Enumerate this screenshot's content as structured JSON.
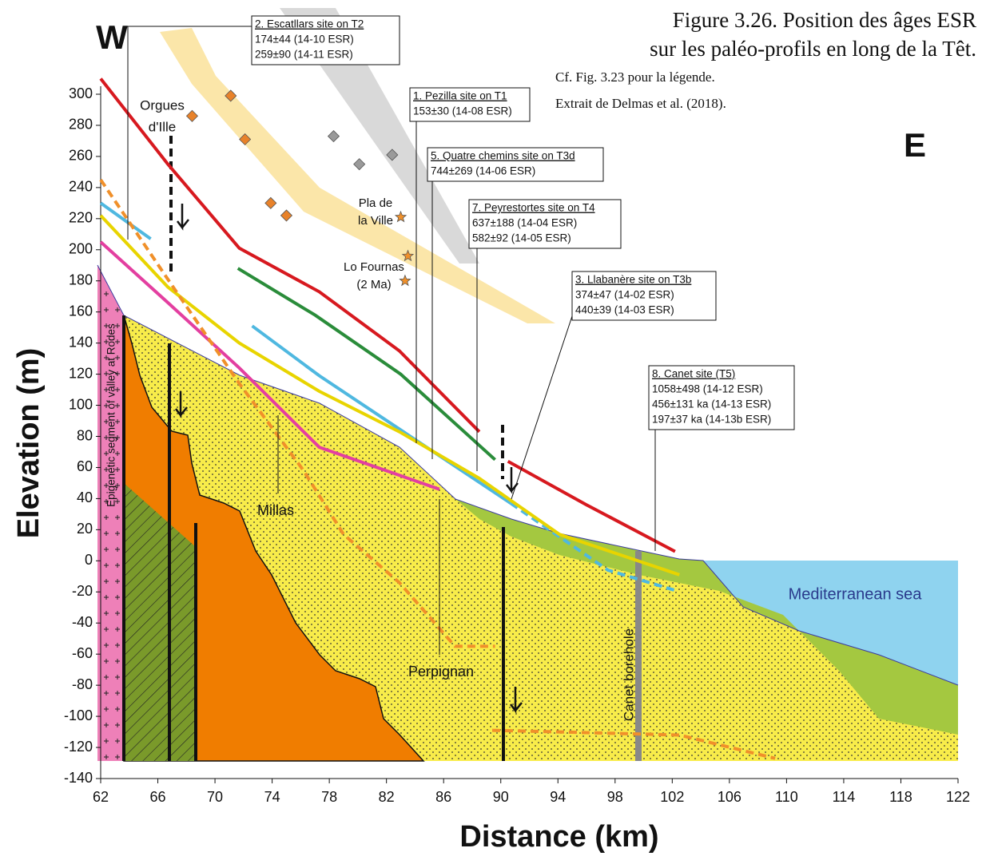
{
  "chart_data": {
    "type": "line",
    "title_lines": [
      "Figure 3.26. Position des âges ESR",
      "sur les paléo-profils en long de la Têt."
    ],
    "subtitle_lines": [
      "Cf. Fig. 3.23 pour la légende.",
      "Extrait de Delmas et al. (2018)."
    ],
    "xlabel": "Distance (km)",
    "ylabel": "Elevation (m)",
    "xlim": [
      62,
      122
    ],
    "xticks": [
      62,
      66,
      70,
      74,
      78,
      82,
      86,
      90,
      94,
      98,
      102,
      106,
      110,
      114,
      118,
      122
    ],
    "ylim": [
      -140,
      300
    ],
    "yticks": [
      -140,
      -120,
      -100,
      -80,
      -60,
      -40,
      -20,
      0,
      20,
      40,
      60,
      80,
      100,
      120,
      140,
      160,
      180,
      200,
      220,
      240,
      260,
      280,
      300
    ],
    "series": [
      {
        "color": "#d7191f",
        "dash": false,
        "x": [
          62,
          66.7,
          71.7,
          77.3,
          82.9,
          88.5,
          null,
          90.5,
          96,
          102.2
        ],
        "values": [
          310,
          255,
          201,
          173,
          135,
          83,
          null,
          64,
          36,
          6
        ]
      },
      {
        "color": "#2a8c3a",
        "dash": false,
        "x": [
          71.6,
          77,
          83,
          89.6
        ],
        "values": [
          188,
          158,
          120,
          65
        ]
      },
      {
        "color": "#4fb8e0",
        "dash": false,
        "x": [
          62,
          65.5,
          null,
          72.6,
          77.3,
          84,
          90.7
        ],
        "values": [
          230,
          207,
          null,
          151,
          119,
          78,
          37
        ]
      },
      {
        "color": "#4fb8e0",
        "dash": true,
        "x": [
          90.7,
          97.5,
          102.2
        ],
        "values": [
          37,
          -6,
          -19
        ]
      },
      {
        "color": "#e8d400",
        "dash": false,
        "x": [
          62,
          66.7,
          71.7,
          77.3,
          82.9,
          88.5,
          94.1,
          102.5
        ],
        "values": [
          222,
          176,
          140,
          109,
          83,
          53,
          17,
          -9
        ]
      },
      {
        "color": "#e33fa0",
        "dash": false,
        "x": [
          62,
          66.7,
          71.7,
          77.3,
          85.7
        ],
        "values": [
          205,
          166,
          124,
          73,
          46
        ]
      },
      {
        "color": "#f0902a",
        "dash": true,
        "x": [
          62,
          66.7,
          71.7,
          76.2,
          79,
          82.9,
          86.8,
          89.6
        ],
        "values": [
          245,
          181,
          114,
          58,
          17,
          -14,
          -55,
          -55
        ]
      },
      {
        "color": "#f0902a",
        "dash": true,
        "x": [
          89.4,
          94.1,
          102.5,
          109.2
        ],
        "values": [
          -109,
          -110,
          -112,
          -127
        ]
      }
    ],
    "points": [
      {
        "marker": "diamond",
        "color": "#e8822a",
        "x": [
          68.4,
          71.1,
          72.1,
          73.9,
          75
        ],
        "values": [
          286,
          299,
          271,
          230,
          222
        ]
      },
      {
        "marker": "diamond",
        "color": "#9a9a9a",
        "x": [
          78.3,
          80.1,
          82.4
        ],
        "values": [
          273,
          255,
          261
        ]
      },
      {
        "marker": "star",
        "color": "#f0902a",
        "x": [
          83,
          83.5,
          83.3
        ],
        "values": [
          221,
          196,
          180
        ]
      }
    ],
    "annotations": [
      {
        "lines": [
          "2. Escatllars site on T2",
          "174±44 (14-10 ESR)",
          "259±90 (14-11 ESR)"
        ]
      },
      {
        "lines": [
          "1. Pezilla site on T1",
          "153±30 (14-08 ESR)"
        ]
      },
      {
        "lines": [
          "5. Quatre chemins site on T3d",
          "744±269 (14-06 ESR)"
        ]
      },
      {
        "lines": [
          "7. Peyrestortes site on T4",
          "637±188 (14-04 ESR)",
          "582±92 (14-05 ESR)"
        ]
      },
      {
        "lines": [
          "3. Llabanère site on T3b",
          "374±47 (14-02 ESR)",
          "440±39 (14-03 ESR)"
        ]
      },
      {
        "lines": [
          "8. Canet site (T5)",
          "1058±498 (14-12 ESR)",
          "456±131 ka (14-13 ESR)",
          "197±37 ka (14-13b ESR)"
        ]
      }
    ],
    "labels": [
      "W",
      "E",
      "Orgues",
      "d'Ille",
      "Pla de",
      "la Ville",
      "Lo Fournas",
      "(2 Ma)",
      "Millas",
      "Perpignan",
      "Canet borehole",
      "Mediterranean sea",
      "Epigenetic segment of valley at Rodes"
    ]
  }
}
